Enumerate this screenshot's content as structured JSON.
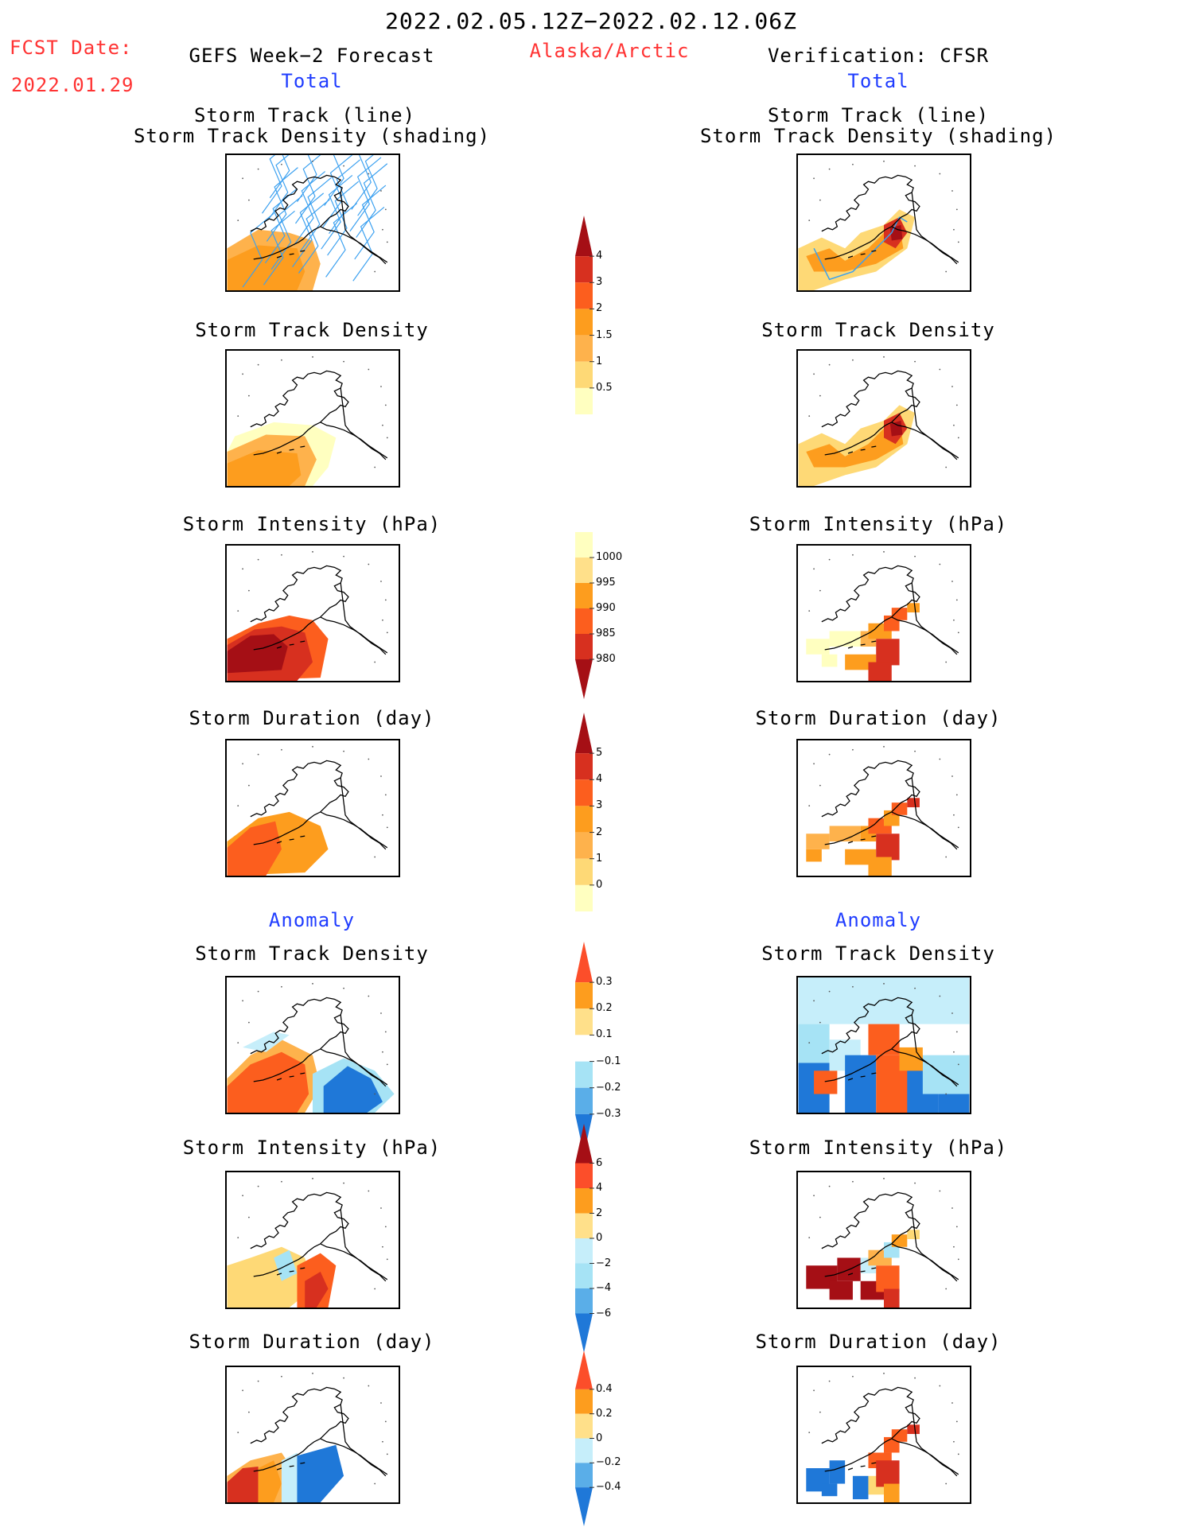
{
  "header": {
    "date_range": "2022.02.05.12Z−2022.02.12.06Z",
    "fcst_label": "FCST Date:",
    "fcst_date": "2022.01.29",
    "left_title": "GEFS Week−2 Forecast",
    "left_sub": "Total",
    "region": "Alaska/Arctic",
    "right_title": "Verification: CFSR",
    "right_sub": "Total"
  },
  "titles": {
    "track_line": "Storm Track (line)",
    "track_shading": "Storm Track Density (shading)",
    "density": "Storm Track Density",
    "intensity": "Storm Intensity (hPa)",
    "duration": "Storm Duration (day)",
    "anomaly": "Anomaly"
  },
  "colorbars": [
    {
      "labels": [
        "4",
        "3",
        "2",
        "1.5",
        "1",
        "0.5"
      ],
      "colors": [
        "#a50f15",
        "#d7301f",
        "#fc5e1e",
        "#fd9d1e",
        "#feb24c",
        "#fed976",
        "#ffffc0"
      ],
      "shape": "top"
    },
    {
      "labels": [
        "1000",
        "995",
        "990",
        "985",
        "980"
      ],
      "colors": [
        "#ffffc0",
        "#ffe08a",
        "#fd9d1e",
        "#fc5e1e",
        "#d7301f",
        "#a50f15"
      ],
      "shape": "bottom"
    },
    {
      "labels": [
        "5",
        "4",
        "3",
        "2",
        "1",
        "0"
      ],
      "colors": [
        "#a50f15",
        "#d7301f",
        "#fc5e1e",
        "#fd9d1e",
        "#feb24c",
        "#fed976",
        "#ffffc0"
      ],
      "shape": "top"
    },
    {
      "labels": [
        "0.3",
        "0.2",
        "0.1",
        "−0.1",
        "−0.2",
        "−0.3"
      ],
      "colors": [
        "#fc4e2a",
        "#fd9d1e",
        "#ffe08a",
        "#ffffff",
        "#a6e3f5",
        "#5aaee8",
        "#1f78d8"
      ],
      "shape": "both"
    },
    {
      "labels": [
        "6",
        "4",
        "2",
        "0",
        "−2",
        "−4",
        "−6"
      ],
      "colors": [
        "#a50f15",
        "#fc4e2a",
        "#fd9d1e",
        "#ffe08a",
        "#c6eefa",
        "#a6e3f5",
        "#5aaee8",
        "#1f78d8"
      ],
      "shape": "both"
    },
    {
      "labels": [
        "0.4",
        "0.2",
        "0",
        "−0.2",
        "−0.4"
      ],
      "colors": [
        "#fc4e2a",
        "#fd9d1e",
        "#ffe08a",
        "#c6eefa",
        "#5aaee8",
        "#1f78d8"
      ],
      "shape": "both"
    }
  ]
}
